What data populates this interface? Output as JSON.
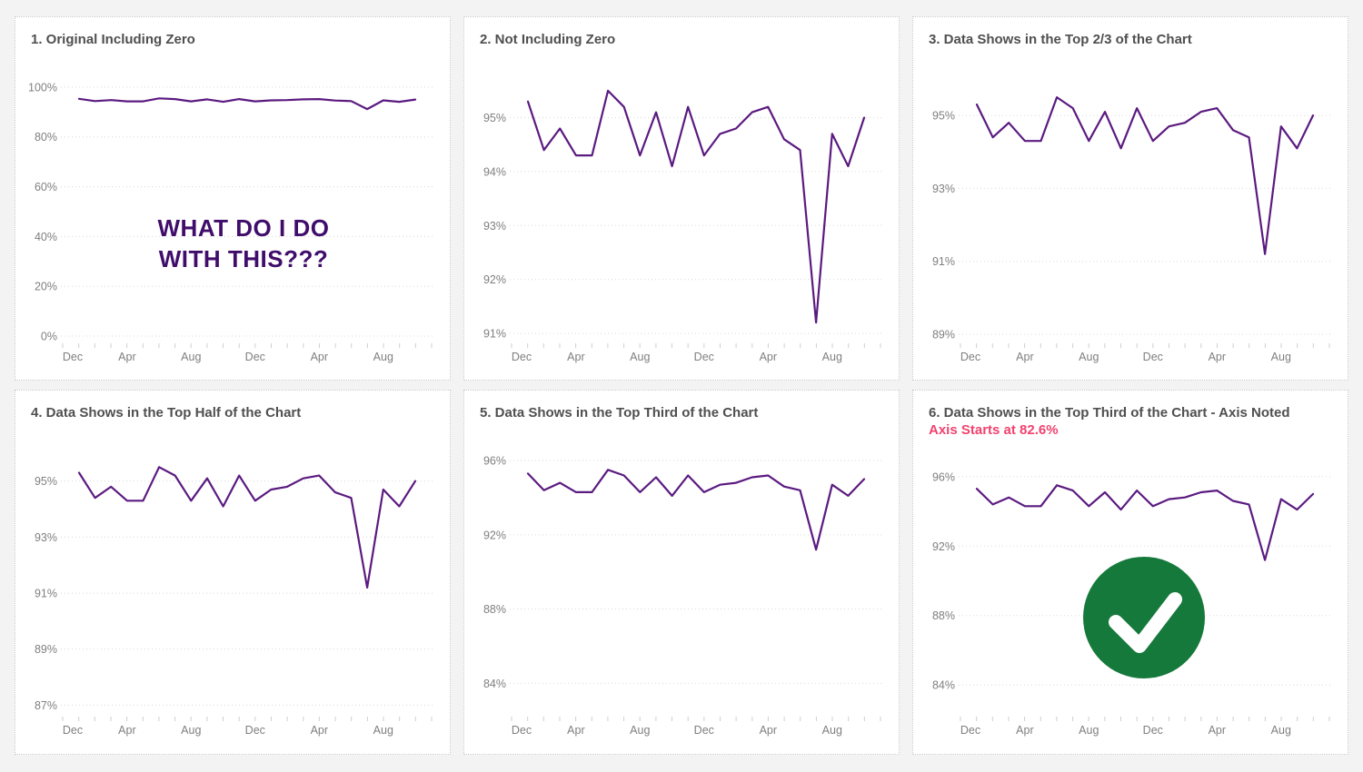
{
  "page": {
    "background": "#f3f3f3",
    "panel_background": "#ffffff",
    "panel_border_color": "#c9c9c9"
  },
  "styles": {
    "title_color": "#4f4f4f",
    "axis_label_color": "#7f7f7f",
    "gridline_color": "#d8d8d8",
    "tick_color": "#cfcfcf"
  },
  "chart_data": {
    "type": "line",
    "description": "Six versions of the same monthly percentage line chart, each with a different y-axis range",
    "grid": "dotted",
    "legend": "none",
    "line_color": "#5b1a80",
    "x": {
      "labels": [
        "Dec",
        "Apr",
        "Aug",
        "Dec",
        "Apr",
        "Aug"
      ],
      "label_point_indices": [
        0,
        3,
        7,
        11,
        15,
        19
      ],
      "minor_ticks": 24
    },
    "series": {
      "unit": "%",
      "values": [
        95.3,
        94.4,
        94.8,
        94.3,
        94.3,
        95.5,
        95.2,
        94.3,
        95.1,
        94.1,
        95.2,
        94.3,
        94.7,
        94.8,
        95.1,
        95.2,
        94.6,
        94.4,
        91.2,
        94.7,
        94.1,
        95.0
      ]
    },
    "charts": [
      {
        "title": "1. Original Including Zero",
        "y_ticks": [
          0,
          20,
          40,
          60,
          80,
          100
        ],
        "y_domain": [
          0,
          101.8
        ],
        "annotation_lines": [
          "WHAT DO I DO",
          "WITH THIS???"
        ],
        "annotation_color": "#400d6b"
      },
      {
        "title": "2. Not Including Zero",
        "y_ticks": [
          91,
          92,
          93,
          94,
          95
        ],
        "y_domain": [
          90.95,
          95.65
        ]
      },
      {
        "title": "3. Data Shows in the Top 2/3 of the Chart",
        "y_ticks": [
          89,
          91,
          93,
          95
        ],
        "y_domain": [
          88.95,
          95.9
        ]
      },
      {
        "title": "4. Data Shows in the Top Half of the Chart",
        "y_ticks": [
          87,
          89,
          91,
          93,
          95
        ],
        "y_domain": [
          86.85,
          95.9
        ]
      },
      {
        "title": "5. Data Shows in the Top Third of the Chart",
        "y_ticks": [
          84,
          88,
          92,
          96
        ],
        "y_domain": [
          82.6,
          96.25
        ]
      },
      {
        "title": "6. Data Shows in the Top Third of the Chart - Axis Noted",
        "subtitle": "Axis Starts at 82.6%",
        "subtitle_color": "#f1426e",
        "y_ticks": [
          84,
          88,
          92,
          96
        ],
        "y_domain": [
          82.6,
          96.25
        ],
        "check_icon": {
          "color": "#16793c"
        }
      }
    ]
  }
}
